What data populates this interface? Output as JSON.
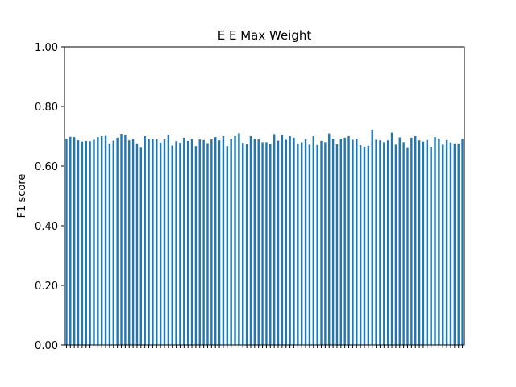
{
  "chart_data": {
    "type": "bar",
    "title": "E E Max Weight",
    "xlabel": "",
    "ylabel": "F1 score",
    "ylim": [
      0,
      1.0
    ],
    "yticks": [
      "0.00",
      "0.20",
      "0.40",
      "0.60",
      "0.80",
      "1.00"
    ],
    "grid": false,
    "bar_color": "#1f77b4",
    "series": [
      {
        "values": [
          0.692,
          0.698,
          0.697,
          0.686,
          0.682,
          0.684,
          0.683,
          0.688,
          0.697,
          0.7,
          0.701,
          0.676,
          0.685,
          0.695,
          0.708,
          0.705,
          0.686,
          0.69,
          0.676,
          0.664,
          0.7,
          0.69,
          0.69,
          0.69,
          0.679,
          0.689,
          0.704,
          0.669,
          0.683,
          0.678,
          0.695,
          0.684,
          0.69,
          0.667,
          0.689,
          0.687,
          0.677,
          0.689,
          0.697,
          0.686,
          0.7,
          0.667,
          0.691,
          0.7,
          0.71,
          0.678,
          0.674,
          0.7,
          0.69,
          0.69,
          0.68,
          0.68,
          0.675,
          0.707,
          0.685,
          0.704,
          0.688,
          0.7,
          0.695,
          0.676,
          0.68,
          0.69,
          0.672,
          0.7,
          0.671,
          0.684,
          0.68,
          0.709,
          0.691,
          0.673,
          0.69,
          0.695,
          0.7,
          0.688,
          0.692,
          0.67,
          0.665,
          0.668,
          0.722,
          0.688,
          0.686,
          0.68,
          0.686,
          0.712,
          0.672,
          0.696,
          0.68,
          0.663,
          0.695,
          0.7,
          0.686,
          0.682,
          0.687,
          0.665,
          0.697,
          0.692,
          0.672,
          0.687,
          0.679,
          0.676,
          0.676,
          0.692
        ]
      }
    ]
  }
}
